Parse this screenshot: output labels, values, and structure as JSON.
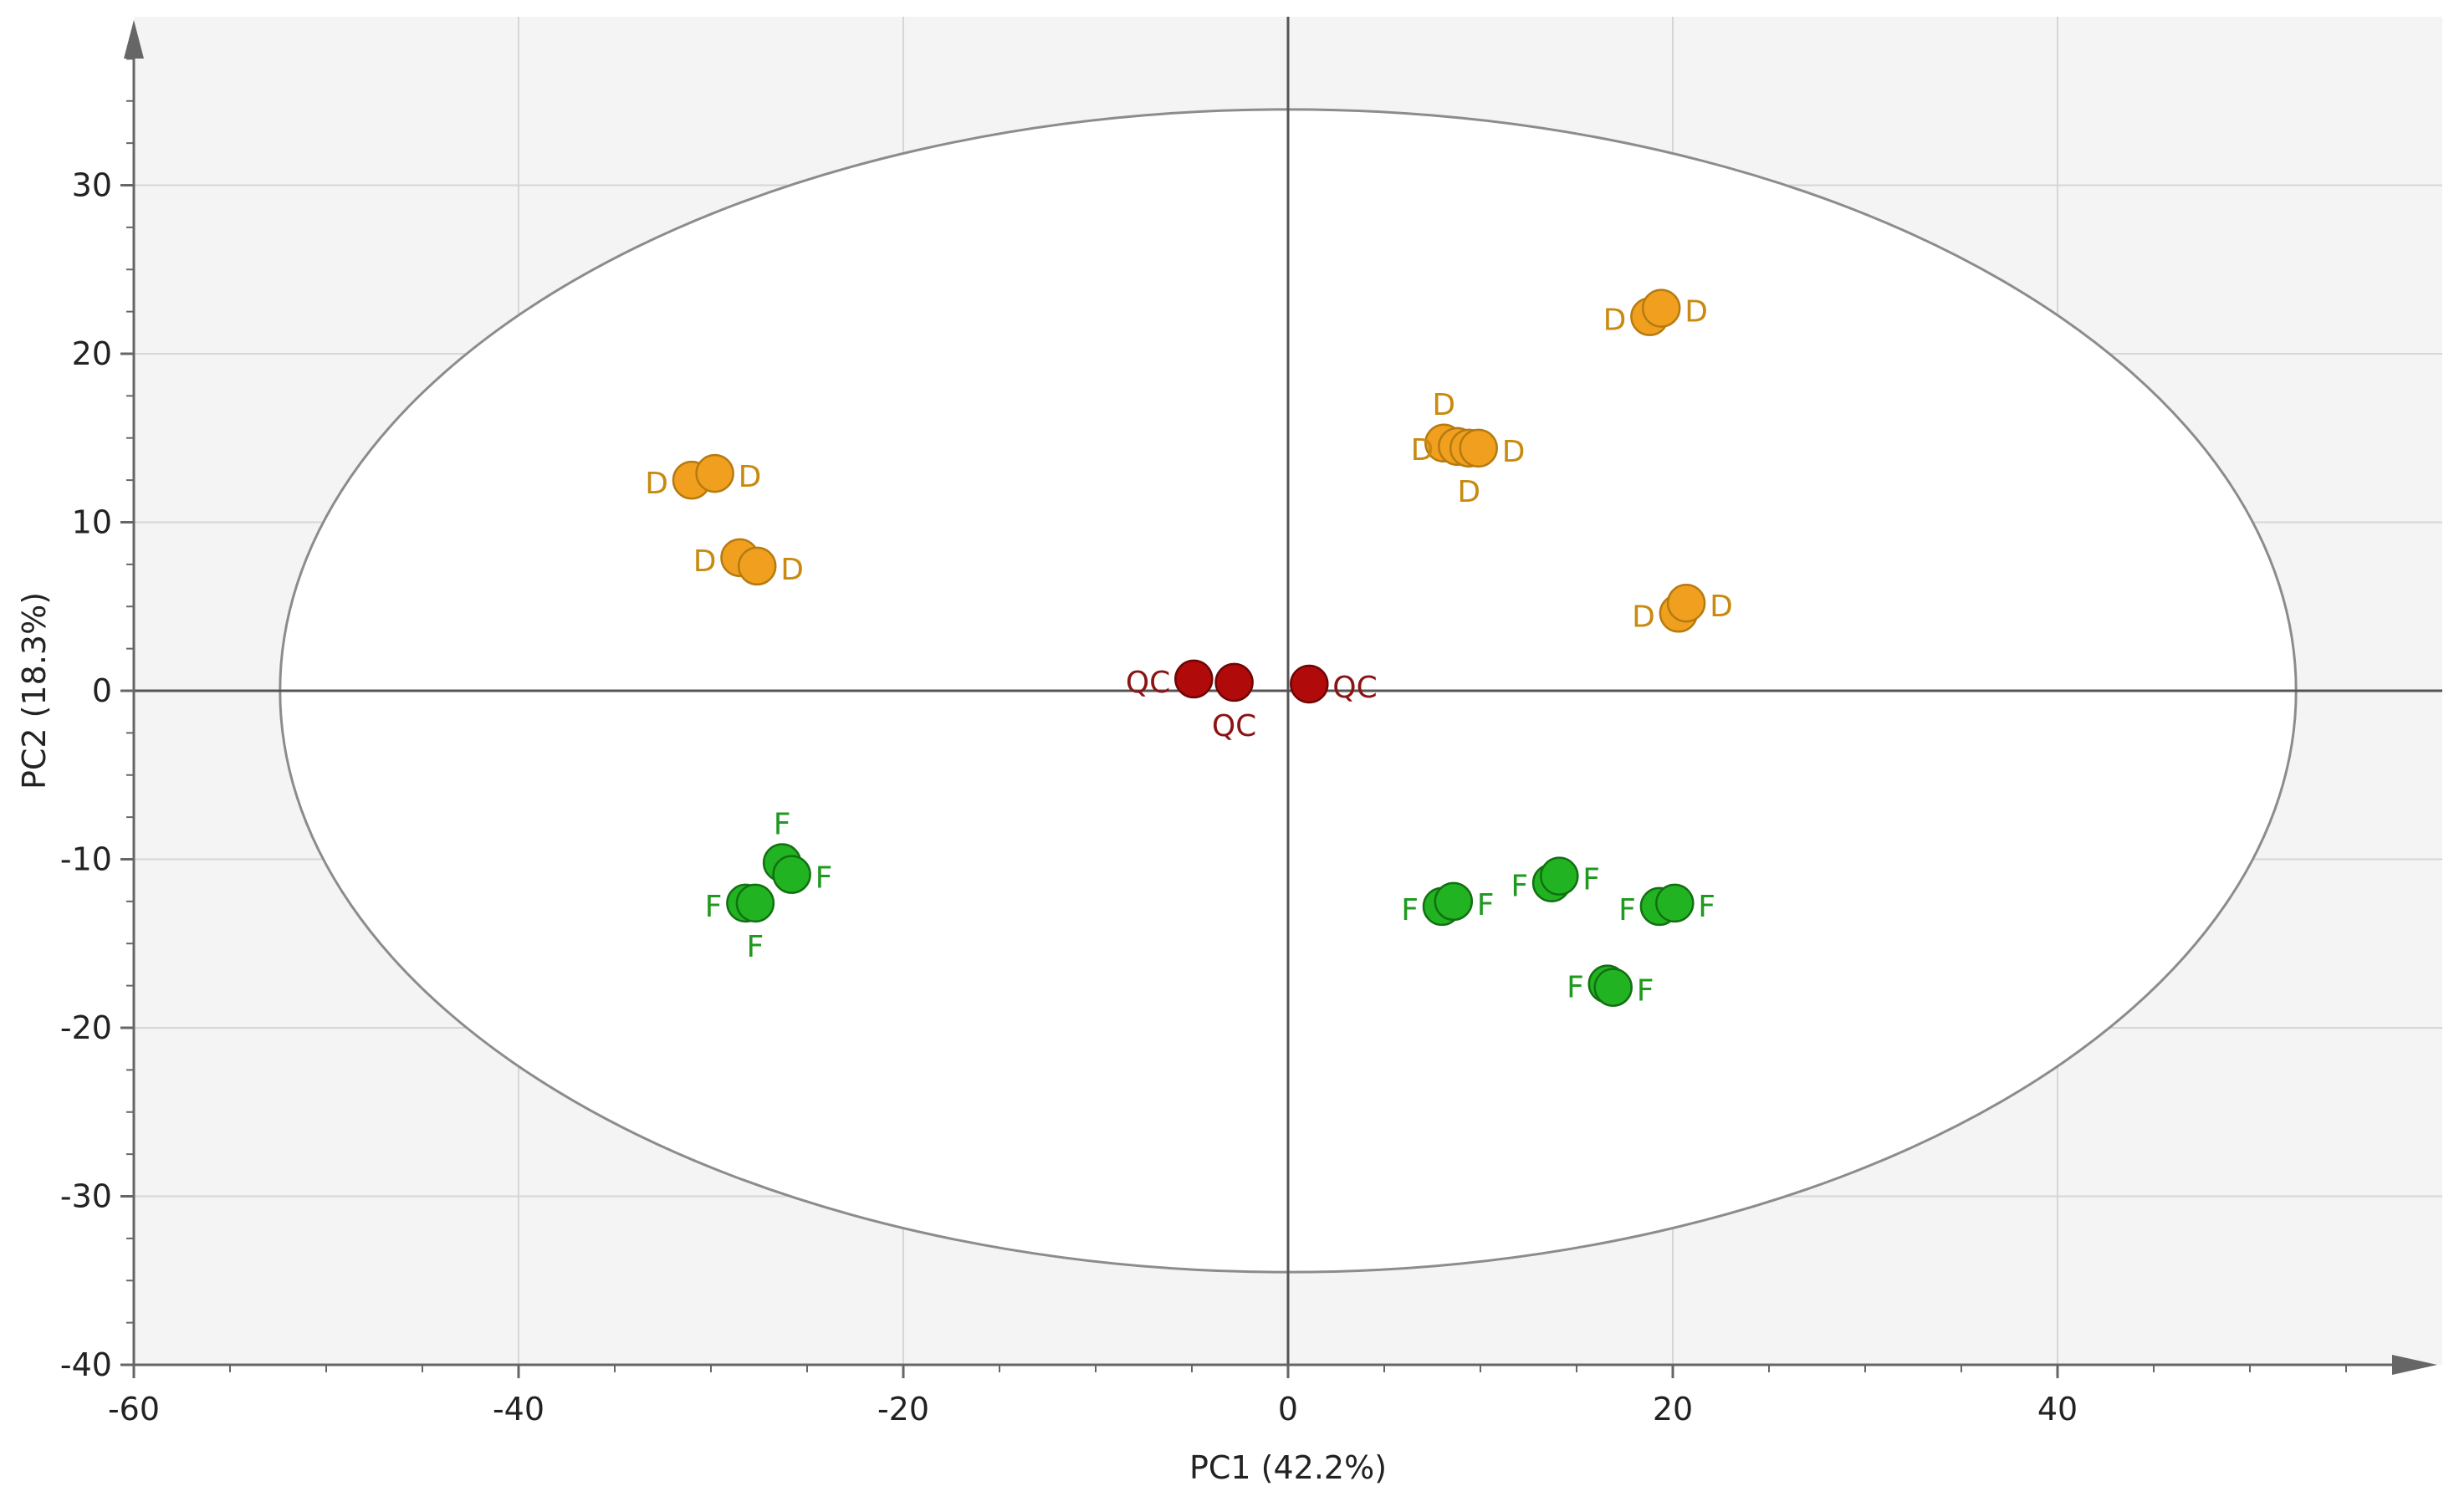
{
  "chart_data": {
    "type": "scatter",
    "xlabel": "PC1 (42.2%)",
    "ylabel": "PC2 (18.3%)",
    "xlim": [
      -60,
      60
    ],
    "ylim": [
      -40,
      40
    ],
    "x_ticks": [
      -60,
      -40,
      -20,
      0,
      20,
      40
    ],
    "y_ticks": [
      -40,
      -30,
      -20,
      -10,
      0,
      10,
      20,
      30
    ],
    "x_tick_labels": [
      "-60",
      "-40",
      "-20",
      "0",
      "20",
      "40"
    ],
    "y_tick_labels": [
      "-40",
      "-30",
      "-20",
      "-10",
      "0",
      "10",
      "20",
      "30"
    ],
    "grid": true,
    "ellipse": {
      "cx": 0,
      "cy": 0,
      "rx": 52.4,
      "ry": 34.5
    },
    "series": [
      {
        "name": "D",
        "color": "#f0a01e",
        "stroke": "#b77a10",
        "label_color": "#c88a10",
        "points": [
          {
            "x": -31,
            "y": 12.5,
            "label": "D",
            "label_pos": "left"
          },
          {
            "x": -29.8,
            "y": 12.9,
            "label": "D",
            "label_pos": "right"
          },
          {
            "x": -28.5,
            "y": 7.9,
            "label": "D",
            "label_pos": "left"
          },
          {
            "x": -27.6,
            "y": 7.4,
            "label": "D",
            "label_pos": "right"
          },
          {
            "x": 8.1,
            "y": 14.7,
            "label": "D",
            "label_pos": "top"
          },
          {
            "x": 8.8,
            "y": 14.5,
            "label": "D",
            "label_pos": "left"
          },
          {
            "x": 9.4,
            "y": 14.4,
            "label": "D",
            "label_pos": "bottom"
          },
          {
            "x": 9.9,
            "y": 14.4,
            "label": "D",
            "label_pos": "right"
          },
          {
            "x": 18.8,
            "y": 22.2,
            "label": "D",
            "label_pos": "left"
          },
          {
            "x": 19.4,
            "y": 22.7,
            "label": "D",
            "label_pos": "right"
          },
          {
            "x": 20.3,
            "y": 4.6,
            "label": "D",
            "label_pos": "left"
          },
          {
            "x": 20.7,
            "y": 5.2,
            "label": "D",
            "label_pos": "right"
          }
        ]
      },
      {
        "name": "QC",
        "color": "#b00a0a",
        "stroke": "#6e0606",
        "label_color": "#8b1414",
        "points": [
          {
            "x": -4.9,
            "y": 0.7,
            "label": "QC",
            "label_pos": "left"
          },
          {
            "x": -2.8,
            "y": 0.5,
            "label": "QC",
            "label_pos": "bottom"
          },
          {
            "x": 1.1,
            "y": 0.4,
            "label": "QC",
            "label_pos": "right"
          }
        ]
      },
      {
        "name": "F",
        "color": "#22b322",
        "stroke": "#127012",
        "label_color": "#1f9a1f",
        "points": [
          {
            "x": -26.3,
            "y": -10.2,
            "label": "F",
            "label_pos": "top"
          },
          {
            "x": -25.8,
            "y": -10.9,
            "label": "F",
            "label_pos": "right"
          },
          {
            "x": -28.2,
            "y": -12.6,
            "label": "F",
            "label_pos": "left"
          },
          {
            "x": -27.7,
            "y": -12.6,
            "label": "F",
            "label_pos": "bottom"
          },
          {
            "x": 8.0,
            "y": -12.8,
            "label": "F",
            "label_pos": "left"
          },
          {
            "x": 8.6,
            "y": -12.5,
            "label": "F",
            "label_pos": "right"
          },
          {
            "x": 13.7,
            "y": -11.4,
            "label": "F",
            "label_pos": "left"
          },
          {
            "x": 14.1,
            "y": -11.0,
            "label": "F",
            "label_pos": "right"
          },
          {
            "x": 19.3,
            "y": -12.8,
            "label": "F",
            "label_pos": "left"
          },
          {
            "x": 20.1,
            "y": -12.6,
            "label": "F",
            "label_pos": "right"
          },
          {
            "x": 16.6,
            "y": -17.4,
            "label": "F",
            "label_pos": "left"
          },
          {
            "x": 16.9,
            "y": -17.6,
            "label": "F",
            "label_pos": "right"
          }
        ]
      }
    ],
    "colors": {
      "plot_background": "#f4f4f4",
      "ellipse_fill": "#ffffff",
      "ellipse_stroke": "#8c8c8c",
      "grid": "#d6d6d6",
      "axis": "#666666",
      "zero_line": "#555555",
      "text": "#222222"
    }
  }
}
